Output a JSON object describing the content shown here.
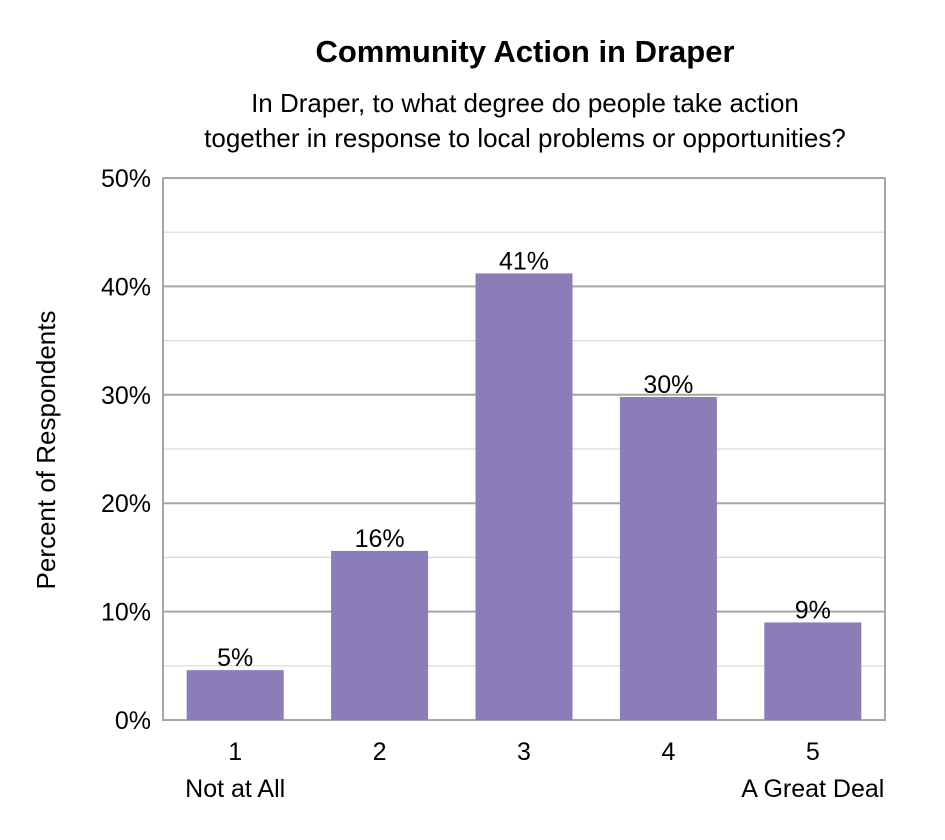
{
  "chart_data": {
    "type": "bar",
    "title": "Community Action in Draper",
    "subtitle_lines": [
      "In Draper, to what degree do people take action",
      "together in response to local problems or opportunities?"
    ],
    "xlabel": "",
    "ylabel": "Percent of Respondents",
    "categories": [
      "1",
      "2",
      "3",
      "4",
      "5"
    ],
    "category_sublabels": [
      "Not at All",
      "",
      "",
      "",
      "A Great Deal"
    ],
    "values": [
      4.6,
      15.6,
      41.2,
      29.8,
      9.0
    ],
    "data_labels": [
      "5%",
      "16%",
      "41%",
      "30%",
      "9%"
    ],
    "ylim": [
      0,
      50
    ],
    "y_ticks": [
      0,
      10,
      20,
      30,
      40,
      50
    ],
    "y_tick_labels": [
      "0%",
      "10%",
      "20%",
      "30%",
      "40%",
      "50%"
    ],
    "minor_gridlines_every": 5,
    "grid": true,
    "legend": "none",
    "bar_color": "#8a7db8",
    "grid_color": "#a6a6a6"
  }
}
